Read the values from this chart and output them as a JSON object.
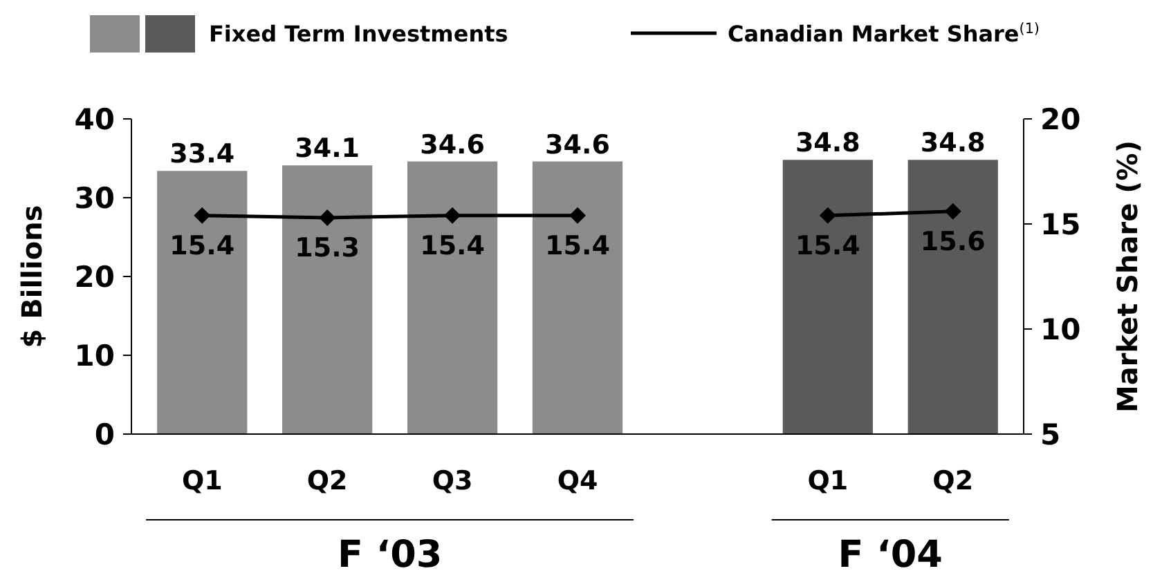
{
  "chart_data": {
    "type": "bar",
    "categories": [
      "Q1",
      "Q2",
      "Q3",
      "Q4",
      null,
      "Q1",
      "Q2"
    ],
    "ylabel": "$ Billions",
    "y2label": "Market Share (%)",
    "series": [
      {
        "name": "Fixed Term Investments",
        "colors": [
          "#8c8c8c",
          "#8c8c8c",
          "#8c8c8c",
          "#8c8c8c",
          null,
          "#5a5a5a",
          "#5a5a5a"
        ],
        "values": [
          33.4,
          34.1,
          34.6,
          34.6,
          null,
          34.8,
          34.8
        ]
      },
      {
        "name": "Canadian Market Share$^{(1)}$",
        "type": "line",
        "axis": "y2",
        "color": "#000000",
        "marker": "diamond",
        "values": [
          15.4,
          15.3,
          15.4,
          15.4,
          null,
          15.4,
          15.6
        ]
      }
    ],
    "ylim": [
      0,
      40
    ],
    "yticks": [
      0,
      10,
      20,
      30,
      40
    ],
    "y2lim": [
      5,
      20
    ],
    "y2ticks": [
      5,
      10,
      15,
      20
    ],
    "data_labels": true,
    "grid": false,
    "legend": "top",
    "annotations": [
      "F ‘03",
      "F ‘04"
    ]
  }
}
